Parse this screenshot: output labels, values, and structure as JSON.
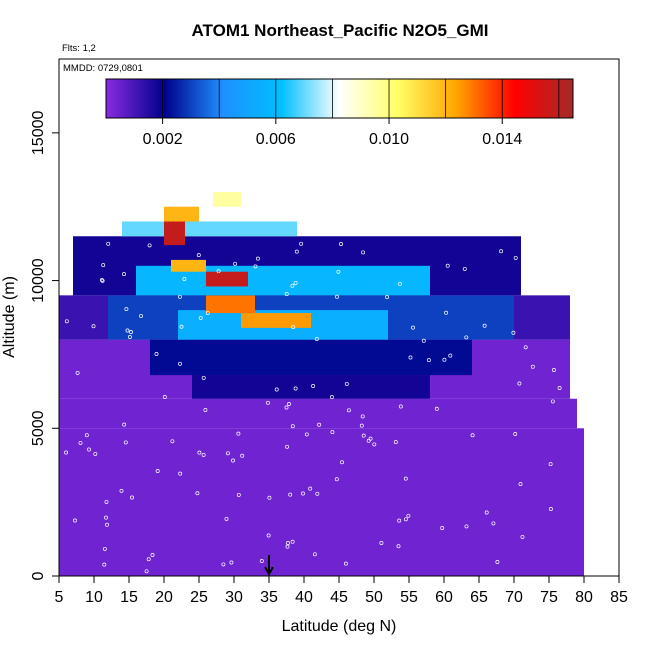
{
  "chart_data": {
    "type": "heatmap",
    "title": "ATOM1 Northeast_Pacific N2O5_GMI",
    "notes": {
      "flights": "Flts: 1,2",
      "dates": "MMDD: 0729,0801"
    },
    "xlabel": "Latitude (deg N)",
    "ylabel": "Altitude (m)",
    "xlim": [
      5,
      85
    ],
    "ylim": [
      0,
      17500
    ],
    "x_ticks": [
      "5",
      "10",
      "15",
      "20",
      "25",
      "30",
      "35",
      "40",
      "45",
      "50",
      "55",
      "60",
      "65",
      "70",
      "75",
      "80",
      "85"
    ],
    "y_ticks": [
      "0",
      "5000",
      "10000",
      "15000"
    ],
    "colorbar": {
      "range": [
        0,
        0.0165
      ],
      "tick_labels": [
        "0.002",
        "0.006",
        "0.010",
        "0.014"
      ],
      "colors": [
        "#8a2be2",
        "#00008b",
        "#1e90ff",
        "#00bfff",
        "#ffffff",
        "#ffff66",
        "#ffa500",
        "#ff0000",
        "#a52a2a"
      ]
    },
    "marker_latitude": 35,
    "field": [
      {
        "alt": [
          0,
          5000
        ],
        "lat": [
          5,
          80
        ],
        "value": 0.0004
      },
      {
        "alt": [
          5000,
          6000
        ],
        "lat": [
          5,
          79
        ],
        "value": 0.0004
      },
      {
        "alt": [
          6000,
          8000
        ],
        "lat": [
          5,
          78
        ],
        "value": 0.0004
      },
      {
        "alt": [
          6000,
          6800
        ],
        "lat": [
          24,
          58
        ],
        "value": 0.0018
      },
      {
        "alt": [
          6800,
          8000
        ],
        "lat": [
          18,
          64
        ],
        "value": 0.0022
      },
      {
        "alt": [
          8000,
          9500
        ],
        "lat": [
          5,
          78
        ],
        "value": 0.0012
      },
      {
        "alt": [
          8000,
          9500
        ],
        "lat": [
          12,
          70
        ],
        "value": 0.003
      },
      {
        "alt": [
          8000,
          9000
        ],
        "lat": [
          22,
          52
        ],
        "value": 0.0055
      },
      {
        "alt": [
          8400,
          8900
        ],
        "lat": [
          31,
          41
        ],
        "value": 0.0125
      },
      {
        "alt": [
          8900,
          9500
        ],
        "lat": [
          26,
          33
        ],
        "value": 0.013
      },
      {
        "alt": [
          9500,
          11500
        ],
        "lat": [
          7,
          71
        ],
        "value": 0.0018
      },
      {
        "alt": [
          9500,
          10500
        ],
        "lat": [
          16,
          58
        ],
        "value": 0.0058
      },
      {
        "alt": [
          9800,
          10300
        ],
        "lat": [
          26,
          32
        ],
        "value": 0.0158
      },
      {
        "alt": [
          10300,
          10700
        ],
        "lat": [
          21,
          26
        ],
        "value": 0.012
      },
      {
        "alt": [
          11500,
          12000
        ],
        "lat": [
          14,
          39
        ],
        "value": 0.007
      },
      {
        "alt": [
          11200,
          12000
        ],
        "lat": [
          20,
          23
        ],
        "value": 0.0158
      },
      {
        "alt": [
          12000,
          12500
        ],
        "lat": [
          20,
          25
        ],
        "value": 0.012
      },
      {
        "alt": [
          12500,
          13000
        ],
        "lat": [
          27,
          31
        ],
        "value": 0.0095
      }
    ]
  }
}
